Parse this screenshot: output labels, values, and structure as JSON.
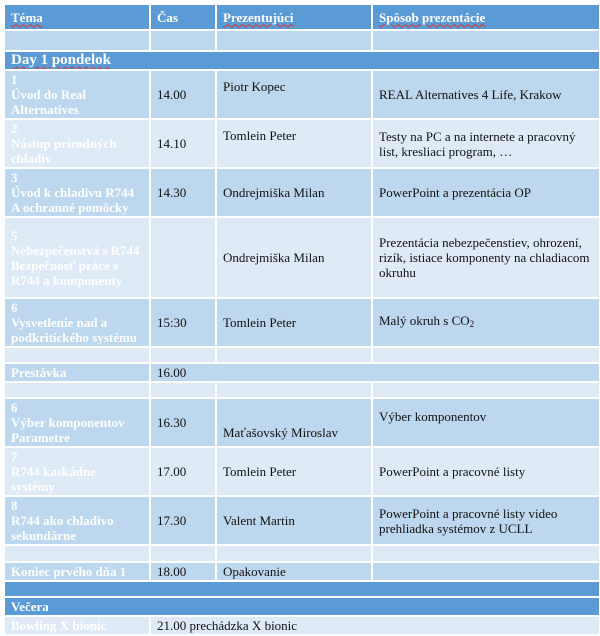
{
  "header": {
    "topic": "Téma",
    "time": "Čas",
    "presenter": "Prezentujúci",
    "method": "Spôsob prezentácie"
  },
  "day": "Day 1 pondelok",
  "rows": [
    {
      "num": "1",
      "topic": "Úvod do Real Alternatives",
      "time": "14.00",
      "presenter": "Piotr Kopec",
      "method": "REAL Alternatives 4 Life, Krakow"
    },
    {
      "num": "2",
      "topic": "Nástup  prírodných chladív",
      "time": "14.10",
      "presenter": "Tomlein Peter",
      "method": "Testy na PC a na internete  a pracovný list, kresliaci program, …"
    },
    {
      "num": "3",
      "topic": "Úvod k chladivu R744 A ochranné pomôcky",
      "time": "14.30",
      "presenter": "Ondrejmiška Milan",
      "method": "PowerPoint  a prezentácia OP"
    },
    {
      "num": "5",
      "topic": "Nebezpečenstvá s R744 Bezpečnosť práce s  R744 a komponenty",
      "time": "",
      "presenter": "Ondrejmiška Milan",
      "method": "Prezentácia nebezpečenstiev, ohrození, rizík, istiace komponenty na chladiacom okruhu"
    },
    {
      "num": "6",
      "topic": "Vysvetlenie nad a podkritického systému",
      "time": "15:30",
      "presenter": "Tomlein Peter",
      "method": "Malý okruh s CO",
      "method_sub": "2"
    }
  ],
  "break": {
    "label": "Prestávka",
    "time": "16.00"
  },
  "rows2": [
    {
      "num": "6",
      "topic": "Výber komponentov Parametre",
      "time": "16.30",
      "presenter": "Maťašovský Miroslav",
      "method": "Výber komponentov"
    },
    {
      "num": "7",
      "topic": "R744 kaskádne systémy",
      "time": "17.00",
      "presenter": "Tomlein Peter",
      "method": "PowerPoint  a pracovné listy"
    },
    {
      "num": "8",
      "topic": "R744 ako chladivo sekundárne",
      "time": "17.30",
      "presenter": "Valent Martin",
      "method": "PowerPoint  a pracovné listy video prehliadka systémov z UCLL"
    }
  ],
  "end": {
    "label": "Koniec prvého dňa 1",
    "time": "18.00",
    "presenter": "Opakovanie"
  },
  "dinner": "Večera",
  "bowling": {
    "label": "Bowling X bionic",
    "text": "21.00 prechádzka X bionic"
  }
}
